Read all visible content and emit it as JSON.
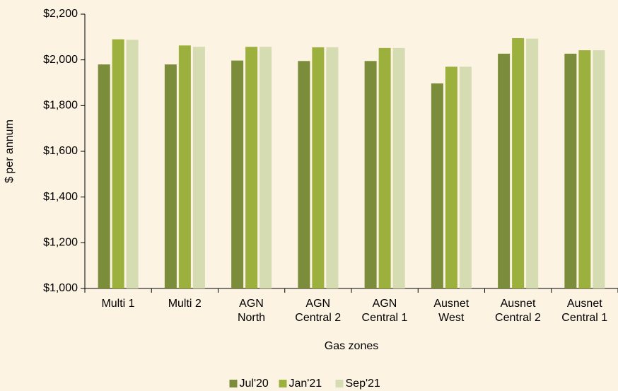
{
  "chart_data": {
    "type": "bar",
    "x_label": "Gas zones",
    "y_label": "$ per annum",
    "categories": [
      "Multi 1",
      "Multi 2",
      "AGN\nNorth",
      "AGN\nCentral 2",
      "AGN\nCentral 1",
      "Ausnet\nWest",
      "Ausnet\nCentral 2",
      "Ausnet\nCentral 1"
    ],
    "series": [
      {
        "name": "Jul'20",
        "color": "#7b8d3b",
        "values": [
          1980,
          1980,
          1997,
          1995,
          1995,
          1897,
          2027,
          2027
        ]
      },
      {
        "name": "Jan'21",
        "color": "#9bb03d",
        "values": [
          2090,
          2063,
          2057,
          2055,
          2052,
          1970,
          2095,
          2042
        ]
      },
      {
        "name": "Sep'21",
        "color": "#d5dcb1",
        "values": [
          2088,
          2057,
          2057,
          2055,
          2052,
          1970,
          2093,
          2042
        ]
      }
    ],
    "ylim": [
      1000,
      2200
    ],
    "yticks": [
      {
        "value": 1000,
        "label": "$1,000"
      },
      {
        "value": 1200,
        "label": "$1,200"
      },
      {
        "value": 1400,
        "label": "$1,400"
      },
      {
        "value": 1600,
        "label": "$1,600"
      },
      {
        "value": 1800,
        "label": "$1,800"
      },
      {
        "value": 2000,
        "label": "$2,000"
      },
      {
        "value": 2200,
        "label": "$2,200"
      }
    ],
    "legend": "bottom"
  }
}
